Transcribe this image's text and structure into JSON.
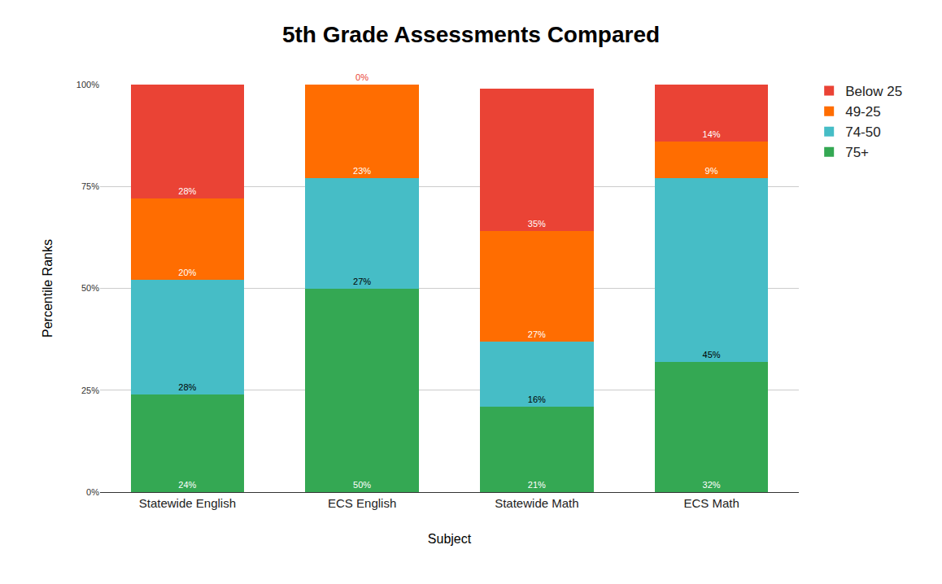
{
  "chart_data": {
    "type": "bar",
    "title": "5th Grade Assessments Compared",
    "x_label": "Subject",
    "y_label": "Percentile Ranks",
    "categories": [
      "Statewide English",
      "ECS English",
      "Statewide Math",
      "ECS Math"
    ],
    "stacked": true,
    "data_labels": true,
    "grid": true,
    "legend": "top-right",
    "ylim": [
      0,
      100
    ],
    "yticks": [
      {
        "value": 0,
        "label": "0%"
      },
      {
        "value": 25,
        "label": "25%"
      },
      {
        "value": 50,
        "label": "50%"
      },
      {
        "value": 75,
        "label": "75%"
      },
      {
        "value": 100,
        "label": "100%"
      }
    ],
    "series": [
      {
        "name": "75+",
        "color": "#34a853",
        "values": [
          24,
          50,
          21,
          32
        ],
        "value_labels": [
          "24%",
          "50%",
          "21%",
          "32%"
        ]
      },
      {
        "name": "74-50",
        "color": "#46bdc6",
        "values": [
          28,
          27,
          16,
          45
        ],
        "value_labels": [
          "28%",
          "27%",
          "16%",
          "45%"
        ]
      },
      {
        "name": "49-25",
        "color": "#ff6d01",
        "values": [
          20,
          23,
          27,
          9
        ],
        "value_labels": [
          "20%",
          "23%",
          "27%",
          "9%"
        ]
      },
      {
        "name": "Below 25",
        "color": "#ea4335",
        "values": [
          28,
          0,
          35,
          14
        ],
        "value_labels": [
          "28%",
          "0%",
          "35%",
          "14%"
        ]
      }
    ]
  }
}
